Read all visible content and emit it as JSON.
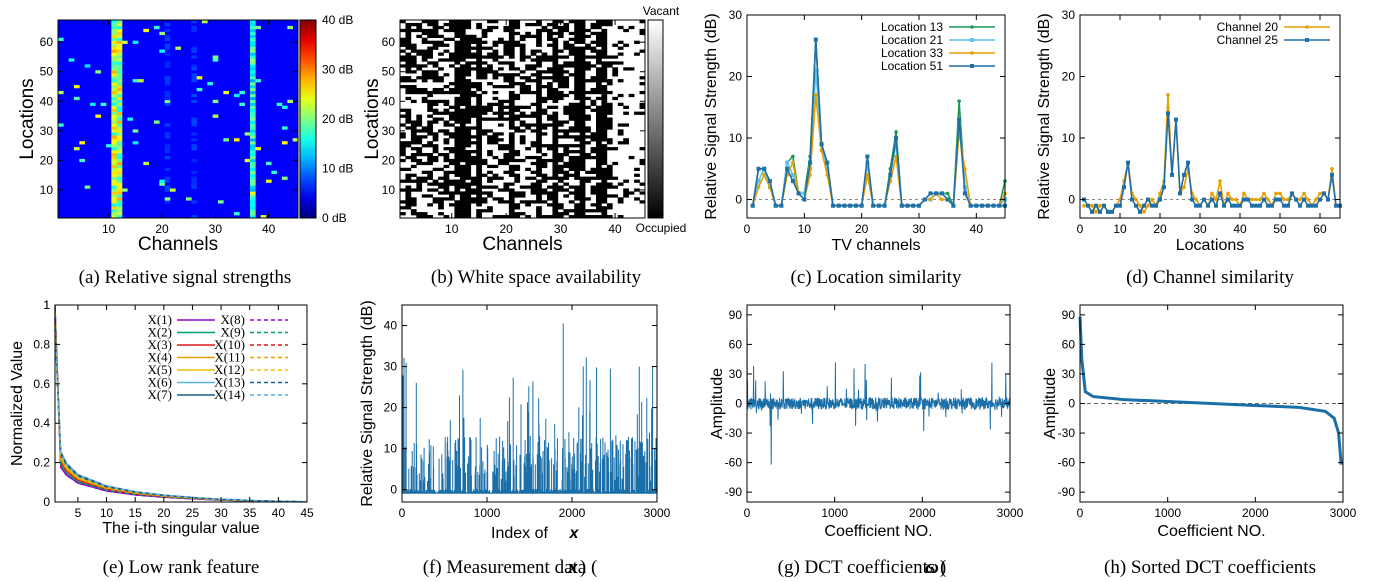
{
  "chart_data": [
    {
      "id": "a",
      "type": "heatmap",
      "caption": "(a) Relative signal strengths",
      "xlabel": "Channels",
      "ylabel": "Locations",
      "xticks": [
        10,
        20,
        30,
        40
      ],
      "yticks": [
        10,
        20,
        30,
        40,
        50,
        60
      ],
      "xlim": [
        0.5,
        45.5
      ],
      "ylim": [
        0.5,
        67.5
      ],
      "n_channels": 45,
      "n_locations": 67,
      "colorbar": {
        "ticks": [
          "0  dB",
          "10 dB",
          "20 dB",
          "30 dB",
          "40 dB"
        ],
        "range": [
          0,
          40
        ]
      },
      "hot_channels": [
        {
          "channel": 11,
          "level": 0.55
        },
        {
          "channel": 12,
          "level": 0.55
        },
        {
          "channel": 37,
          "level": 0.4
        },
        {
          "channel": 21,
          "level": 0.15
        },
        {
          "channel": 26,
          "level": 0.15
        }
      ]
    },
    {
      "id": "b",
      "type": "heatmap",
      "caption": "(b) White space availability",
      "xlabel": "Channels",
      "ylabel": "Locations",
      "xticks": [
        10,
        20,
        30,
        40
      ],
      "yticks": [
        10,
        20,
        30,
        40,
        50,
        60
      ],
      "colorbar": {
        "top": "Vacant",
        "bottom": "Occupied"
      },
      "occupied_channels": [
        11,
        12,
        13,
        15,
        21,
        26,
        29,
        33,
        34,
        37,
        38
      ],
      "vacant_fraction": 0.55
    },
    {
      "id": "c",
      "type": "line",
      "caption": "(c) Location similarity",
      "xlabel": "TV channels",
      "ylabel": "Relative Signal Strength (dB)",
      "xlim": [
        0,
        45
      ],
      "ylim": [
        -3,
        30
      ],
      "xticks": [
        0,
        10,
        20,
        30,
        40
      ],
      "yticks": [
        0,
        10,
        20,
        30
      ],
      "legend_position": "top-right",
      "x": [
        1,
        2,
        3,
        4,
        5,
        6,
        7,
        8,
        9,
        10,
        11,
        12,
        13,
        14,
        15,
        16,
        17,
        18,
        19,
        20,
        21,
        22,
        23,
        24,
        25,
        26,
        27,
        28,
        29,
        30,
        31,
        32,
        33,
        34,
        35,
        36,
        37,
        38,
        39,
        40,
        41,
        42,
        43,
        44,
        45
      ],
      "series": [
        {
          "name": "Location 13",
          "color": "#1a9850",
          "marker": "dot",
          "values": [
            -1,
            5,
            5,
            2,
            -1,
            -1,
            6,
            7,
            1,
            1,
            7,
            26,
            9,
            6,
            -1,
            -1,
            -1,
            -1,
            -1,
            -1,
            6,
            -1,
            -1,
            -1,
            5,
            11,
            -1,
            -1,
            -1,
            -1,
            0,
            0,
            1,
            1,
            1,
            -1,
            16,
            2,
            -1,
            -1,
            -1,
            -1,
            -1,
            -1,
            3
          ]
        },
        {
          "name": "Location 21",
          "color": "#5bc4ea",
          "marker": "square",
          "values": [
            -1,
            3,
            5,
            2,
            -1,
            -1,
            6,
            4,
            1,
            1,
            5,
            21,
            9,
            5,
            -1,
            -1,
            -1,
            -1,
            -1,
            -1,
            6,
            -1,
            -1,
            -1,
            4,
            9,
            -1,
            -1,
            -1,
            -1,
            0,
            0,
            1,
            1,
            0,
            -1,
            13,
            2,
            -1,
            -1,
            -1,
            -1,
            -1,
            -1,
            0
          ]
        },
        {
          "name": "Location 33",
          "color": "#e69f00",
          "marker": "dot",
          "values": [
            -1,
            2,
            4,
            2,
            -1,
            -1,
            4,
            6,
            1,
            0,
            4,
            17,
            8,
            4,
            -1,
            -1,
            -1,
            -1,
            -1,
            -1,
            4,
            -1,
            -1,
            -1,
            3,
            7,
            -1,
            -1,
            -1,
            -1,
            0,
            0,
            1,
            0,
            0,
            -1,
            11,
            5,
            -1,
            -1,
            -1,
            -1,
            -1,
            -1,
            1
          ]
        },
        {
          "name": "Location 51",
          "color": "#1f6fa8",
          "marker": "square",
          "values": [
            -1,
            5,
            5,
            3,
            -1,
            -1,
            5,
            3,
            1,
            0,
            6,
            26,
            9,
            6,
            -1,
            -1,
            -1,
            -1,
            -1,
            -1,
            7,
            -1,
            -1,
            -1,
            4,
            10,
            -1,
            -1,
            -1,
            -1,
            0,
            1,
            1,
            1,
            0,
            -1,
            13,
            1,
            -1,
            -1,
            -1,
            -1,
            -1,
            -1,
            -1
          ]
        }
      ]
    },
    {
      "id": "d",
      "type": "line",
      "caption": "(d) Channel similarity",
      "xlabel": "Locations",
      "ylabel": "Relative Signal Strength (dB)",
      "xlim": [
        0,
        65
      ],
      "ylim": [
        -3,
        30
      ],
      "xticks": [
        0,
        10,
        20,
        30,
        40,
        50,
        60
      ],
      "yticks": [
        0,
        10,
        20,
        30
      ],
      "legend_position": "top-right",
      "series": [
        {
          "name": "Channel 20",
          "color": "#e69f00",
          "marker": "dot",
          "values": [
            -1,
            -1,
            -1,
            -2,
            -1,
            -1,
            -2,
            -2,
            -1,
            0,
            3,
            6,
            1,
            0,
            -1,
            -2,
            -1,
            0,
            -1,
            1,
            3,
            17,
            4,
            13,
            1,
            2,
            5,
            1,
            0,
            -1,
            0,
            -1,
            1,
            0,
            3,
            -1,
            1,
            0,
            0,
            -1,
            1,
            0,
            0,
            0,
            0,
            1,
            0,
            -1,
            1,
            1,
            0,
            0,
            1,
            0,
            0,
            1,
            0,
            -1,
            0,
            1,
            1,
            0,
            5,
            -1,
            -1
          ]
        },
        {
          "name": "Channel 25",
          "color": "#1f6fa8",
          "marker": "square",
          "values": [
            0,
            -1,
            -2,
            -1,
            -2,
            -1,
            -2,
            -2,
            -1,
            -1,
            2,
            6,
            0,
            -1,
            -2,
            -1,
            0,
            -1,
            -1,
            0,
            2,
            14,
            4,
            13,
            1,
            4,
            6,
            0,
            -1,
            -1,
            0,
            -1,
            0,
            -1,
            1,
            -1,
            0,
            -1,
            -1,
            -1,
            0,
            0,
            -1,
            -1,
            -1,
            0,
            -1,
            -1,
            0,
            0,
            -1,
            -1,
            1,
            0,
            -1,
            0,
            -1,
            -1,
            -1,
            0,
            1,
            0,
            4,
            -1,
            -1
          ]
        }
      ]
    },
    {
      "id": "e",
      "type": "line",
      "caption": "(e) Low rank feature",
      "xlabel": "The i-th singular value",
      "ylabel": "Normalized Value",
      "xlim": [
        1,
        45
      ],
      "ylim": [
        0,
        1
      ],
      "xticks": [
        5,
        10,
        15,
        20,
        25,
        30,
        35,
        40,
        45
      ],
      "yticks": [
        0,
        0.2,
        0.4,
        0.6,
        0.8,
        1
      ],
      "legend_position": "top-right",
      "series_labels": [
        "X(1)",
        "X(2)",
        "X(3)",
        "X(4)",
        "X(5)",
        "X(6)",
        "X(7)",
        "X(8)",
        "X(9)",
        "X(10)",
        "X(11)",
        "X(12)",
        "X(13)",
        "X(14)"
      ],
      "series_colors": [
        "#9400d3",
        "#009e73",
        "#e41a1c",
        "#e69f00",
        "#f0c000",
        "#56b4e9",
        "#1f5f8b",
        "#9400d3",
        "#009e73",
        "#e41a1c",
        "#e69f00",
        "#f0c000",
        "#1f5f8b",
        "#56b4e9"
      ],
      "decay_sample": [
        [
          1,
          1.0
        ],
        [
          2,
          0.22
        ],
        [
          3,
          0.17
        ],
        [
          5,
          0.12
        ],
        [
          10,
          0.07
        ],
        [
          15,
          0.045
        ],
        [
          20,
          0.03
        ],
        [
          25,
          0.02
        ],
        [
          30,
          0.012
        ],
        [
          35,
          0.007
        ],
        [
          40,
          0.003
        ],
        [
          45,
          0.001
        ]
      ]
    },
    {
      "id": "f",
      "type": "line",
      "caption": "(f) Measurement data",
      "caption_symbol": "x",
      "xlabel": "Index of",
      "xlabel_symbol": "x",
      "ylabel": "Relative Signal Strength (dB)",
      "xlim": [
        0,
        3000
      ],
      "ylim": [
        -3,
        45
      ],
      "xticks": [
        0,
        1000,
        2000,
        3000
      ],
      "yticks": [
        0,
        10,
        20,
        30,
        40
      ],
      "color": "#1b6fa8",
      "peak": 40.5
    },
    {
      "id": "g",
      "type": "line",
      "caption": "(g) DCT coefficients",
      "caption_symbol": "ω",
      "xlabel": "Coefficient NO.",
      "ylabel": "Amplitude",
      "xlim": [
        0,
        3000
      ],
      "ylim": [
        -100,
        100
      ],
      "xticks": [
        0,
        1000,
        2000,
        3000
      ],
      "yticks": [
        90,
        60,
        30,
        0,
        -30,
        -60,
        -90
      ],
      "color": "#1b6fa8",
      "first_value": 90,
      "min_value": -62
    },
    {
      "id": "h",
      "type": "line",
      "caption": "(h) Sorted DCT coefficients",
      "xlabel": "Coefficient NO.",
      "ylabel": "Amplitude",
      "xlim": [
        0,
        3000
      ],
      "ylim": [
        -100,
        100
      ],
      "xticks": [
        0,
        1000,
        2000,
        3000
      ],
      "yticks": [
        90,
        60,
        30,
        0,
        -30,
        -60,
        -90
      ],
      "color": "#1b6fa8",
      "curve": [
        [
          0,
          88
        ],
        [
          20,
          45
        ],
        [
          60,
          12
        ],
        [
          150,
          7
        ],
        [
          500,
          4
        ],
        [
          1000,
          2
        ],
        [
          1500,
          0
        ],
        [
          2000,
          -2
        ],
        [
          2500,
          -4
        ],
        [
          2800,
          -8
        ],
        [
          2900,
          -15
        ],
        [
          2950,
          -30
        ],
        [
          2980,
          -62
        ]
      ]
    }
  ]
}
